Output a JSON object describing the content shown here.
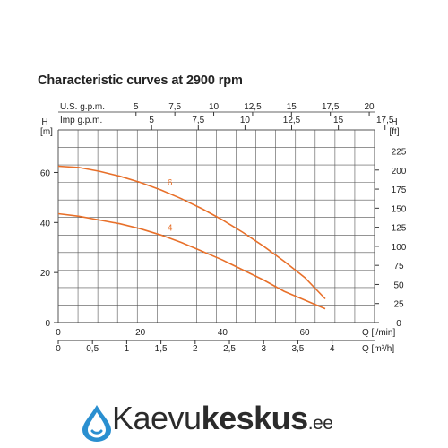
{
  "title": "Characteristic curves at 2900 rpm",
  "chart_data": {
    "type": "line",
    "title": "Characteristic curves at 2900 rpm",
    "x_primary": {
      "label": "Q [l/min]",
      "ticks": [
        "0",
        "20",
        "40",
        "60"
      ],
      "range": [
        0,
        77
      ]
    },
    "x_m3h": {
      "label": "Q [m³/h]",
      "ticks": [
        "0",
        "0,5",
        "1",
        "1,5",
        "2",
        "2,5",
        "3",
        "3,5",
        "4"
      ]
    },
    "x_usgpm": {
      "label": "U.S. g.p.m.",
      "ticks": [
        "5",
        "7,5",
        "10",
        "12,5",
        "15",
        "17,5",
        "20"
      ]
    },
    "x_impgpm": {
      "label": "Imp g.p.m.",
      "ticks": [
        "5",
        "7,5",
        "10",
        "12,5",
        "15",
        "17,5"
      ]
    },
    "y_left": {
      "label_top": "H",
      "label_unit": "[m]",
      "ticks": [
        "0",
        "20",
        "40",
        "60"
      ],
      "range": [
        0,
        77
      ]
    },
    "y_right": {
      "label_top": "H",
      "label_unit": "[ft]",
      "ticks": [
        "0",
        "25",
        "50",
        "75",
        "100",
        "125",
        "150",
        "175",
        "200",
        "225"
      ]
    },
    "grid": true,
    "series": [
      {
        "name": "6",
        "color": "#e8702a",
        "x": [
          0,
          5,
          10,
          15,
          20,
          25,
          30,
          35,
          40,
          45,
          50,
          55,
          60,
          65
        ],
        "y": [
          62.5,
          62,
          60.5,
          58.5,
          56,
          53,
          49.5,
          45.5,
          41,
          36,
          30.5,
          24.5,
          18,
          9.5
        ]
      },
      {
        "name": "4",
        "color": "#e8702a",
        "x": [
          0,
          5,
          10,
          15,
          20,
          25,
          30,
          35,
          40,
          45,
          50,
          55,
          60,
          65
        ],
        "y": [
          43.5,
          42.5,
          41,
          39.5,
          37.5,
          35,
          32,
          28.5,
          25,
          21,
          17,
          12.5,
          9,
          5.5
        ]
      }
    ]
  },
  "logo": {
    "part1": "Kaevu",
    "part2": "keskus",
    "tld": ".ee",
    "drop_color": "#2a8fd0"
  }
}
